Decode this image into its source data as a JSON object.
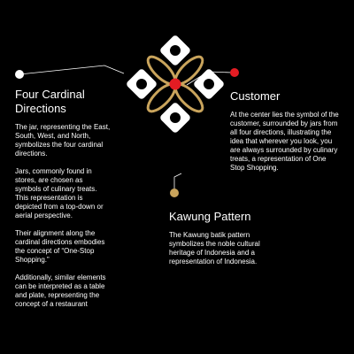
{
  "colors": {
    "background": "#000000",
    "text": "#ffffff",
    "accent_red": "#e31c23",
    "accent_gold": "#c9a45c",
    "connector": "#ffffff"
  },
  "left": {
    "heading": "Four Cardinal Directions",
    "paragraphs": [
      "The jar, representing the East, South, West, and North, symbolizes the four cardinal directions.",
      "Jars, commonly found in stores, are chosen as symbols of culinary treats. This representation is depicted from a top-down or aerial perspective.",
      "Their alignment along the cardinal directions embodies the concept of “One-Stop Shopping.”",
      "Additionally, similar elements can be interpreted as a table and plate, representing the concept of a restaurant"
    ]
  },
  "right": {
    "heading": "Customer",
    "paragraphs": [
      "At the center lies the symbol of the customer, surrounded by jars from all four directions, illustrating the idea that wherever you look, you are always surrounded by culinary treats, a representation of One Stop Shopping."
    ]
  },
  "bottom": {
    "heading": "Kawung Pattern",
    "paragraphs": [
      "The Kawung batik pattern symbolizes the noble cultural heritage of Indonesia and a representation of Indonesia."
    ]
  }
}
